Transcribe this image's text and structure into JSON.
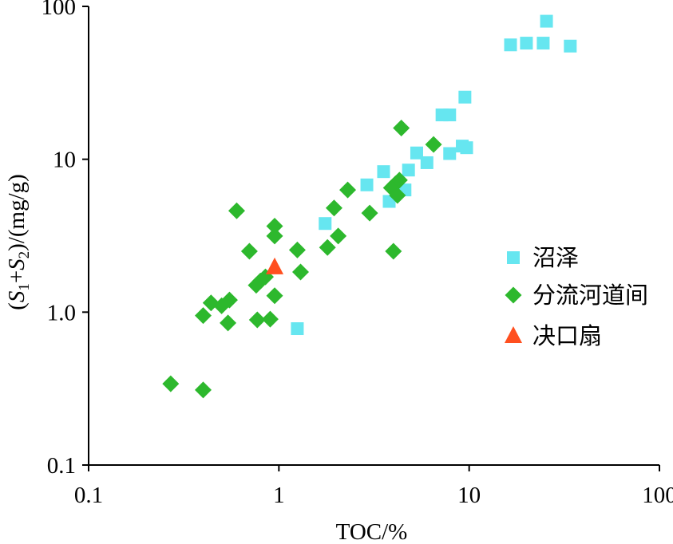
{
  "chart_data": {
    "type": "scatter",
    "xscale": "log",
    "yscale": "log",
    "xlim": [
      0.1,
      100
    ],
    "ylim": [
      0.1,
      100
    ],
    "xlabel": "TOC/%",
    "ylabel": "(S1+S2)/(mg/g)",
    "ylabel_parts": {
      "pre": "(",
      "s1": "S",
      "sub1": "1",
      "plus": "+",
      "s2": "S",
      "sub2": "2",
      "post": ")/(mg/g)"
    },
    "x_ticks": [
      {
        "value": 0.1,
        "label": "0.1"
      },
      {
        "value": 1,
        "label": "1"
      },
      {
        "value": 10,
        "label": "10"
      },
      {
        "value": 100,
        "label": "100"
      }
    ],
    "y_ticks": [
      {
        "value": 0.1,
        "label": "0.1"
      },
      {
        "value": 1,
        "label": "1.0"
      },
      {
        "value": 10,
        "label": "10"
      },
      {
        "value": 100,
        "label": "100"
      }
    ],
    "grid": false,
    "legend_position": "right",
    "series": [
      {
        "name": "沼泽",
        "marker": "square",
        "color": "#66E6F0",
        "points": [
          [
            25.5,
            80
          ],
          [
            16.5,
            56
          ],
          [
            20,
            57.5
          ],
          [
            24.5,
            57.5
          ],
          [
            34,
            55
          ],
          [
            9.5,
            25.5
          ],
          [
            7.2,
            19.5
          ],
          [
            7.9,
            19.5
          ],
          [
            9.2,
            12.2
          ],
          [
            9.7,
            11.9
          ],
          [
            7.9,
            10.9
          ],
          [
            5.3,
            11
          ],
          [
            6,
            9.5
          ],
          [
            4.8,
            8.5
          ],
          [
            3.55,
            8.3
          ],
          [
            2.9,
            6.8
          ],
          [
            4.6,
            6.3
          ],
          [
            3.8,
            5.3
          ],
          [
            1.75,
            3.8
          ],
          [
            1.25,
            0.78
          ]
        ]
      },
      {
        "name": "分流河道间",
        "marker": "diamond",
        "color": "#2DB82D",
        "points": [
          [
            0.27,
            0.34
          ],
          [
            0.4,
            0.31
          ],
          [
            0.4,
            0.95
          ],
          [
            0.44,
            1.15
          ],
          [
            0.5,
            1.1
          ],
          [
            0.55,
            1.2
          ],
          [
            0.54,
            0.85
          ],
          [
            0.77,
            0.89
          ],
          [
            0.9,
            0.9
          ],
          [
            0.76,
            1.5
          ],
          [
            0.8,
            1.6
          ],
          [
            0.85,
            1.7
          ],
          [
            0.95,
            1.28
          ],
          [
            0.6,
            4.6
          ],
          [
            0.7,
            2.5
          ],
          [
            0.95,
            3.65
          ],
          [
            0.95,
            3.15
          ],
          [
            1.25,
            2.55
          ],
          [
            1.3,
            1.83
          ],
          [
            1.8,
            2.65
          ],
          [
            2.05,
            3.15
          ],
          [
            1.95,
            4.8
          ],
          [
            2.3,
            6.3
          ],
          [
            3,
            4.45
          ],
          [
            3.9,
            6.5
          ],
          [
            4.1,
            6.9
          ],
          [
            4.2,
            5.8
          ],
          [
            4.3,
            7.3
          ],
          [
            4.4,
            16
          ],
          [
            6.5,
            12.5
          ],
          [
            4,
            2.5
          ]
        ]
      },
      {
        "name": "决口扇",
        "marker": "triangle",
        "color": "#FF4F1F",
        "points": [
          [
            0.95,
            1.97
          ]
        ]
      }
    ]
  }
}
